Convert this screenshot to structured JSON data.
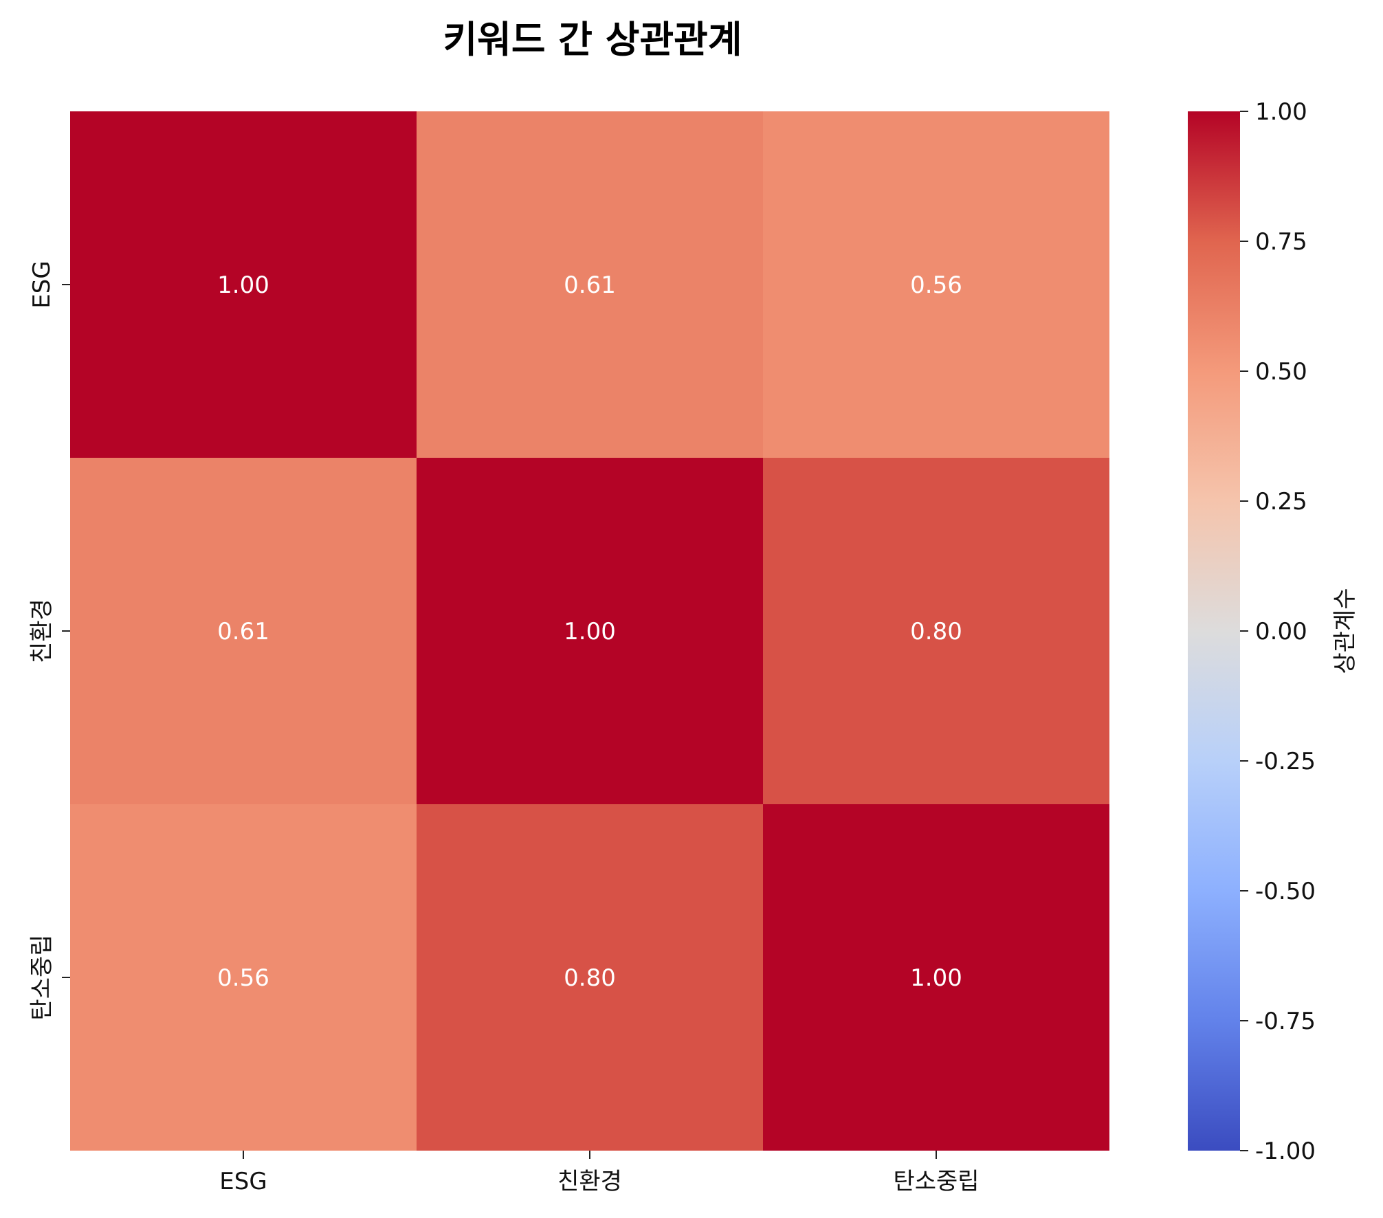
{
  "chart_data": {
    "type": "heatmap",
    "title": "키워드 간 상관관계",
    "x_labels": [
      "ESG",
      "친환경",
      "탄소중립"
    ],
    "y_labels": [
      "ESG",
      "친환경",
      "탄소중립"
    ],
    "values": [
      [
        1.0,
        0.61,
        0.56
      ],
      [
        0.61,
        1.0,
        0.8
      ],
      [
        0.56,
        0.8,
        1.0
      ]
    ],
    "annotations": [
      [
        "1.00",
        "0.61",
        "0.56"
      ],
      [
        "0.61",
        "1.00",
        "0.80"
      ],
      [
        "0.56",
        "0.80",
        "1.00"
      ]
    ],
    "colormap": "coolwarm",
    "colorbar": {
      "label": "상관계수",
      "vmin": -1.0,
      "vmax": 1.0,
      "ticks": [
        1.0,
        0.75,
        0.5,
        0.25,
        0.0,
        -0.25,
        -0.5,
        -0.75,
        -1.0
      ],
      "tick_labels": [
        "1.00",
        "0.75",
        "0.50",
        "0.25",
        "0.00",
        "-0.25",
        "-0.50",
        "-0.75",
        "-1.00"
      ]
    },
    "grid": false
  }
}
